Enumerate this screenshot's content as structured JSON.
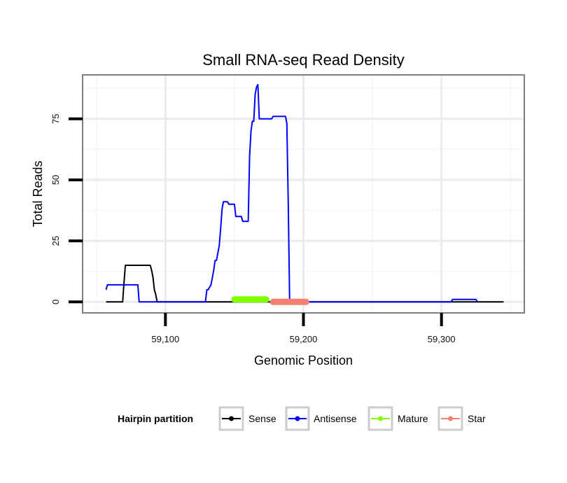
{
  "chart_data": {
    "type": "line",
    "title": "Small RNA-seq Read Density",
    "xlabel": "Genomic Position",
    "ylabel": "Total Reads",
    "xlim": [
      59040,
      59360
    ],
    "ylim": [
      -4.5,
      93
    ],
    "x_ticks": [
      59100,
      59200,
      59300
    ],
    "x_tick_labels": [
      "59,100",
      "59,200",
      "59,300"
    ],
    "y_ticks": [
      0,
      25,
      50,
      75
    ],
    "y_tick_labels": [
      "0",
      "25",
      "50",
      "75"
    ],
    "grid": true,
    "legend": {
      "title": "Hairpin partition",
      "position": "bottom"
    },
    "series": [
      {
        "name": "Sense",
        "color": "#000000",
        "x": [
          59057,
          59069,
          59070,
          59071,
          59089,
          59090,
          59091,
          59092,
          59093,
          59094,
          59345
        ],
        "y": [
          0,
          0,
          8,
          15,
          15,
          13,
          10,
          5,
          3,
          0,
          0
        ]
      },
      {
        "name": "Antisense",
        "color": "#0000ff",
        "x": [
          59057,
          59058,
          59080,
          59081,
          59129,
          59130,
          59131,
          59132,
          59133,
          59134,
          59135,
          59136,
          59137,
          59138,
          59139,
          59140,
          59141,
          59142,
          59143,
          59144,
          59145,
          59146,
          59150,
          59151,
          59155,
          59156,
          59160,
          59161,
          59162,
          59163,
          59164,
          59165,
          59166,
          59167,
          59168,
          59169,
          59170,
          59177,
          59178,
          59187,
          59188,
          59189,
          59190,
          59307,
          59308,
          59325,
          59326
        ],
        "y": [
          5,
          7,
          7,
          0,
          0,
          5,
          5,
          6,
          7,
          10,
          13,
          17,
          17,
          20,
          23,
          30,
          38,
          41,
          41,
          41,
          41,
          40,
          40,
          35,
          35,
          33,
          33,
          60,
          70,
          74,
          74,
          85,
          88,
          89,
          75,
          75,
          75,
          75,
          76,
          76,
          73,
          40,
          0,
          0,
          1,
          1,
          0
        ]
      },
      {
        "name": "Mature",
        "color": "#7fff00",
        "x": [
          59150,
          59173
        ],
        "y": [
          1,
          1
        ]
      },
      {
        "name": "Star",
        "color": "#f08070",
        "x": [
          59178,
          59202
        ],
        "y": [
          0,
          0
        ]
      }
    ]
  }
}
